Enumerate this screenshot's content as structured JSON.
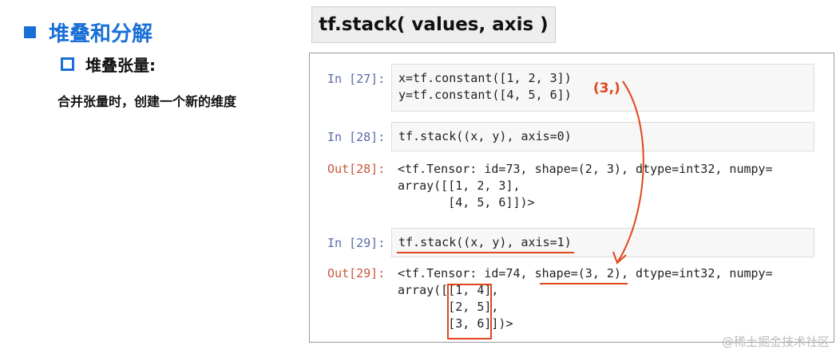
{
  "slide": {
    "heading": "堆叠和分解",
    "subheading": "堆叠张量:",
    "description": "合并张量时，创建一个新的维度",
    "api_title": "tf.stack( values, axis )"
  },
  "cells": [
    {
      "in_prompt": "In [27]:",
      "code": [
        "x=tf.constant([1, 2, 3])",
        "y=tf.constant([4, 5, 6])"
      ]
    },
    {
      "in_prompt": "In [28]:",
      "code": [
        "tf.stack((x, y), axis=0)"
      ],
      "out_prompt": "Out[28]:",
      "output": [
        "<tf.Tensor: id=73, shape=(2, 3), dtype=int32, numpy=",
        "array([[1, 2, 3],",
        "       [4, 5, 6]])>"
      ]
    },
    {
      "in_prompt": "In [29]:",
      "code": [
        "tf.stack((x, y), axis=1)"
      ],
      "out_prompt": "Out[29]:",
      "output": [
        "<tf.Tensor: id=74, shape=(3, 2), dtype=int32, numpy=",
        "array([[1, 4],",
        "       [2, 5],",
        "       [3, 6]])>"
      ]
    }
  ],
  "annotation": "(3,)",
  "watermark": "@稀土掘金技术社区",
  "colors": {
    "accent": "#1a6fd6",
    "annotation": "#e0461a"
  }
}
